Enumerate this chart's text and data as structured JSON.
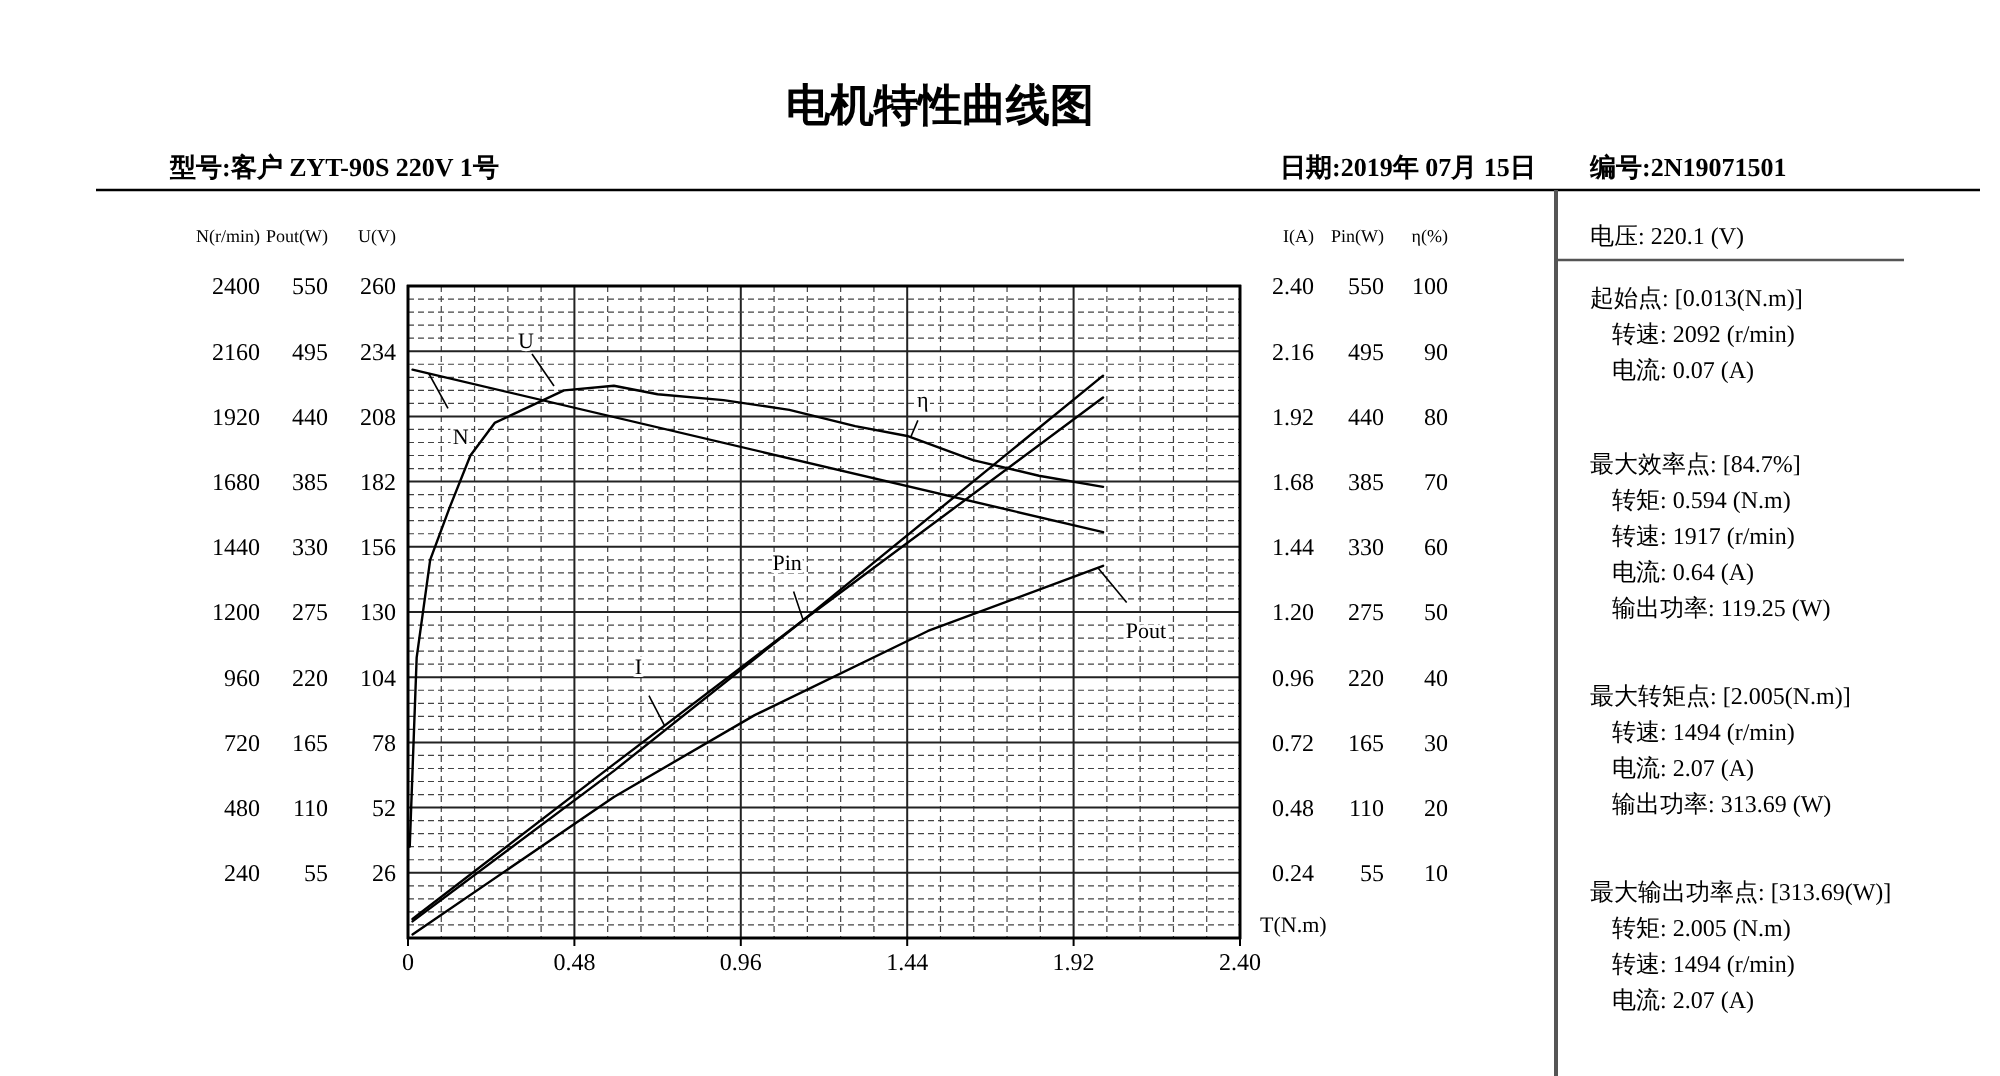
{
  "chart_data": [
    {
      "type": "line",
      "title": "电机特性曲线图",
      "xlabel": "T(N.m)",
      "ylabel": "U(V)",
      "y2label": "I(A)",
      "xlim": [
        0,
        2.4
      ],
      "xticks": [
        0,
        0.48,
        0.96,
        1.44,
        1.92,
        {
          "value": 2.4,
          "label": "2.40"
        }
      ],
      "ylim": [
        0,
        260
      ],
      "yticks": [
        26,
        52,
        78,
        104,
        130,
        156,
        182,
        208,
        234,
        260
      ],
      "y2lim": [
        0,
        2.4
      ],
      "y2ticks": [
        0.24,
        0.48,
        0.72,
        0.96,
        {
          "value": 1.2,
          "label": "1.20"
        },
        1.44,
        1.68,
        1.92,
        2.16,
        {
          "value": 2.4,
          "label": "2.40"
        }
      ],
      "grid": true,
      "series": [
        {
          "name": "I",
          "axis": "y2",
          "color": "#000000",
          "x": [
            0.013,
            0.594,
            1.14,
            2.005
          ],
          "values": [
            0.07,
            0.64,
            1.17,
            2.07
          ]
        }
      ],
      "annotations": [
        "型号:客户 ZYT-90S 220V 1号",
        "日期:2019年 07月 15日",
        "编号:2N19071501",
        "电压:  220.1 (V)",
        "起始点: [0.013(N.m)]",
        "转速: 2092 (r/min)",
        "电流: 0.07 (A)",
        "最大效率点: [84.7%]",
        "转矩: 0.594 (N.m)",
        "转速: 1917 (r/min)",
        "电流: 0.64 (A)",
        "输出功率: 119.25 (W)",
        "最大转矩点: [2.005(N.m)]",
        "转速: 1494 (r/min)",
        "电流: 2.07 (A)",
        "输出功率: 313.69 (W)",
        "最大输出功率点: [313.69(W)]",
        "转矩: 2.005 (N.m)",
        "转速: 1494 (r/min)",
        "电流: 2.07 (A)",
        "U"
      ]
    },
    {
      "type": "line",
      "ylabel": "N(r/min)",
      "y2label": "η(%)",
      "tick_labels": "y",
      "xlim": [
        0,
        2.4
      ],
      "ylim": [
        0,
        2400
      ],
      "yticks": [
        240,
        480,
        720,
        960,
        1200,
        1440,
        1680,
        1920,
        2160,
        2400
      ],
      "y2lim": [
        0,
        100
      ],
      "y2ticks": [
        10,
        20,
        30,
        40,
        50,
        60,
        70,
        80,
        90,
        100
      ],
      "series": [
        {
          "name": "N",
          "color": "#000000",
          "x": [
            0.013,
            2.005
          ],
          "values": [
            2092,
            1494
          ]
        },
        {
          "name": "η",
          "axis": "y2",
          "color": "#000000",
          "x": [
            0.005,
            0.025,
            0.064,
            0.12,
            0.18,
            0.25,
            0.37,
            0.45,
            0.594,
            0.72,
            0.91,
            1.1,
            1.29,
            1.44,
            1.63,
            1.82,
            2.005
          ],
          "values": [
            14,
            43,
            58,
            66,
            74,
            79,
            82,
            84,
            84.7,
            83.4,
            82.5,
            81,
            78.5,
            77,
            73.3,
            70.9,
            69.2
          ]
        }
      ]
    },
    {
      "type": "line",
      "ylabel": "Pout(W)",
      "y2label": "Pin(W)",
      "tick_labels": "y",
      "xlim": [
        0,
        2.4
      ],
      "ylim": [
        0,
        550
      ],
      "yticks": [
        55,
        110,
        165,
        220,
        275,
        330,
        385,
        440,
        495,
        550
      ],
      "y2lim": [
        0,
        550
      ],
      "y2ticks": [
        55,
        110,
        165,
        220,
        275,
        330,
        385,
        440,
        495,
        550
      ],
      "series": [
        {
          "name": "Pout",
          "color": "#000000",
          "x": [
            0.013,
            0.594,
            1.0,
            1.5,
            2.005
          ],
          "values": [
            3,
            119,
            188,
            259,
            314
          ]
        },
        {
          "name": "Pin",
          "axis": "y2",
          "color": "#000000",
          "x": [
            0.013,
            0.594,
            1.14,
            2.005
          ],
          "values": [
            14,
            141,
            268,
            456
          ]
        }
      ]
    }
  ]
}
